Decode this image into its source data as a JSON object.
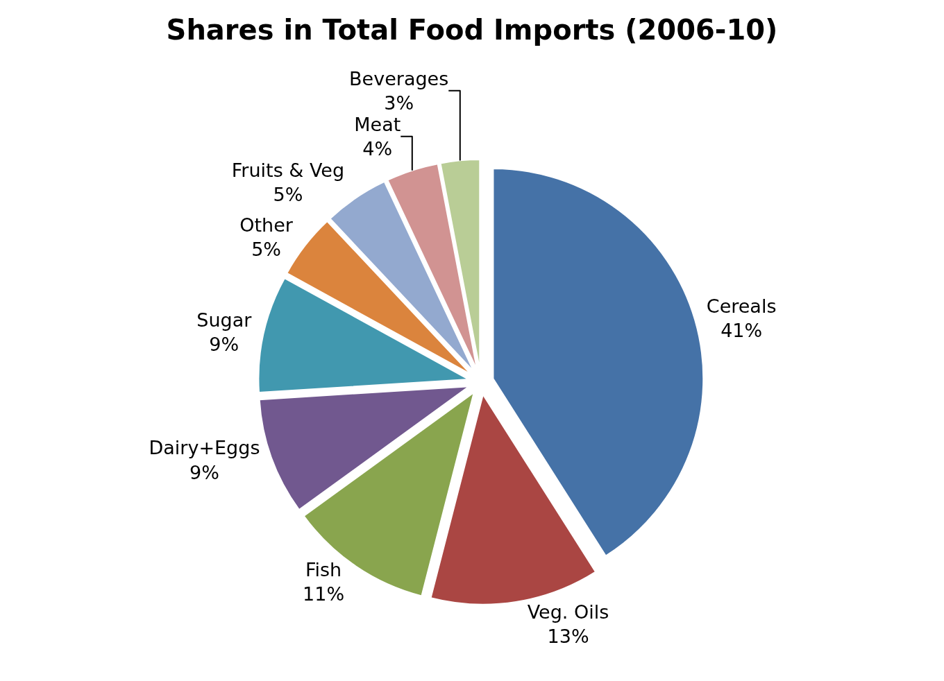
{
  "chart_data": {
    "type": "pie",
    "title": "Shares in Total Food Imports (2006-10)",
    "categories": [
      "Cereals",
      "Veg. Oils",
      "Fish",
      "Dairy+Eggs",
      "Sugar",
      "Other",
      "Fruits & Veg",
      "Meat",
      "Beverages"
    ],
    "values": [
      41,
      13,
      11,
      9,
      9,
      5,
      5,
      4,
      3
    ],
    "value_labels": [
      "41%",
      "13%",
      "11%",
      "9%",
      "9%",
      "5%",
      "5%",
      "4%",
      "3%"
    ],
    "colors": [
      "#4572a7",
      "#aa4643",
      "#89a54e",
      "#71588f",
      "#4198af",
      "#db843d",
      "#93a9cf",
      "#d19392",
      "#b9cd96"
    ],
    "legend": false
  }
}
